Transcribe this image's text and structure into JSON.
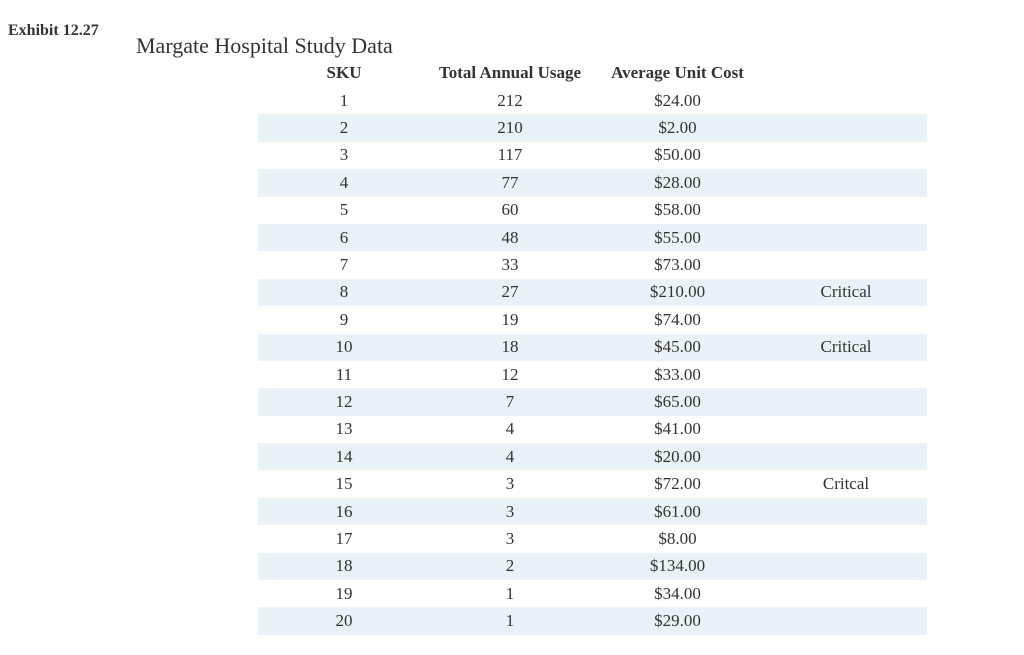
{
  "exhibit": {
    "label": "Exhibit 12.27"
  },
  "title": "Margate Hospital Study Data",
  "colors": {
    "stripe": "#e9f2f7",
    "text": "#333333",
    "background": "#ffffff"
  },
  "table": {
    "headers": {
      "sku": "SKU",
      "usage": "Total Annual Usage",
      "cost": "Average Unit Cost",
      "note": ""
    },
    "rows": [
      {
        "sku": "1",
        "usage": "212",
        "cost": "$24.00",
        "note": ""
      },
      {
        "sku": "2",
        "usage": "210",
        "cost": "$2.00",
        "note": ""
      },
      {
        "sku": "3",
        "usage": "117",
        "cost": "$50.00",
        "note": ""
      },
      {
        "sku": "4",
        "usage": "77",
        "cost": "$28.00",
        "note": ""
      },
      {
        "sku": "5",
        "usage": "60",
        "cost": "$58.00",
        "note": ""
      },
      {
        "sku": "6",
        "usage": "48",
        "cost": "$55.00",
        "note": ""
      },
      {
        "sku": "7",
        "usage": "33",
        "cost": "$73.00",
        "note": ""
      },
      {
        "sku": "8",
        "usage": "27",
        "cost": "$210.00",
        "note": "Critical"
      },
      {
        "sku": "9",
        "usage": "19",
        "cost": "$74.00",
        "note": ""
      },
      {
        "sku": "10",
        "usage": "18",
        "cost": "$45.00",
        "note": "Critical"
      },
      {
        "sku": "11",
        "usage": "12",
        "cost": "$33.00",
        "note": ""
      },
      {
        "sku": "12",
        "usage": "7",
        "cost": "$65.00",
        "note": ""
      },
      {
        "sku": "13",
        "usage": "4",
        "cost": "$41.00",
        "note": ""
      },
      {
        "sku": "14",
        "usage": "4",
        "cost": "$20.00",
        "note": ""
      },
      {
        "sku": "15",
        "usage": "3",
        "cost": "$72.00",
        "note": "Critcal"
      },
      {
        "sku": "16",
        "usage": "3",
        "cost": "$61.00",
        "note": ""
      },
      {
        "sku": "17",
        "usage": "3",
        "cost": "$8.00",
        "note": ""
      },
      {
        "sku": "18",
        "usage": "2",
        "cost": "$134.00",
        "note": ""
      },
      {
        "sku": "19",
        "usage": "1",
        "cost": "$34.00",
        "note": ""
      },
      {
        "sku": "20",
        "usage": "1",
        "cost": "$29.00",
        "note": ""
      }
    ]
  }
}
